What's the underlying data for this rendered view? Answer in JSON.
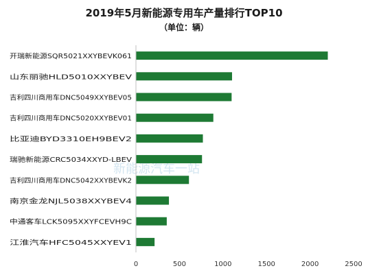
{
  "chart_data": {
    "type": "bar",
    "orientation": "horizontal",
    "title": "2019年5月新能源专用车产量排行TOP10",
    "subtitle": "（单位：辆）",
    "categories": [
      "开瑞新能源SQR5021XXYBEVK061",
      "山东丽驰HLD5010XXYBEV",
      "吉利四川商用车DNC5049XXYBEV05",
      "吉利四川商用车DNC5020XXYBEV01",
      "比亚迪BYD3310EH9BEV2",
      "瑞驰新能源CRC5034XXYD-LBEV",
      "吉利四川商用车DNC5042XXYBEVK2",
      "南京金龙NJL5038XXYBEV4",
      "中通客车LCK5095XXYFCEVH9C",
      "江淮汽车HFC5045XXYEV1"
    ],
    "values": [
      2200,
      1100,
      1095,
      885,
      765,
      755,
      605,
      375,
      350,
      210
    ],
    "xlim": [
      0,
      2500
    ],
    "xticks": [
      "0",
      "500",
      "1000",
      "1500",
      "2000",
      "2500"
    ],
    "grid": false,
    "legend": "none",
    "bar_color": "#1e7a34",
    "watermark": "新能源汽车一站"
  }
}
